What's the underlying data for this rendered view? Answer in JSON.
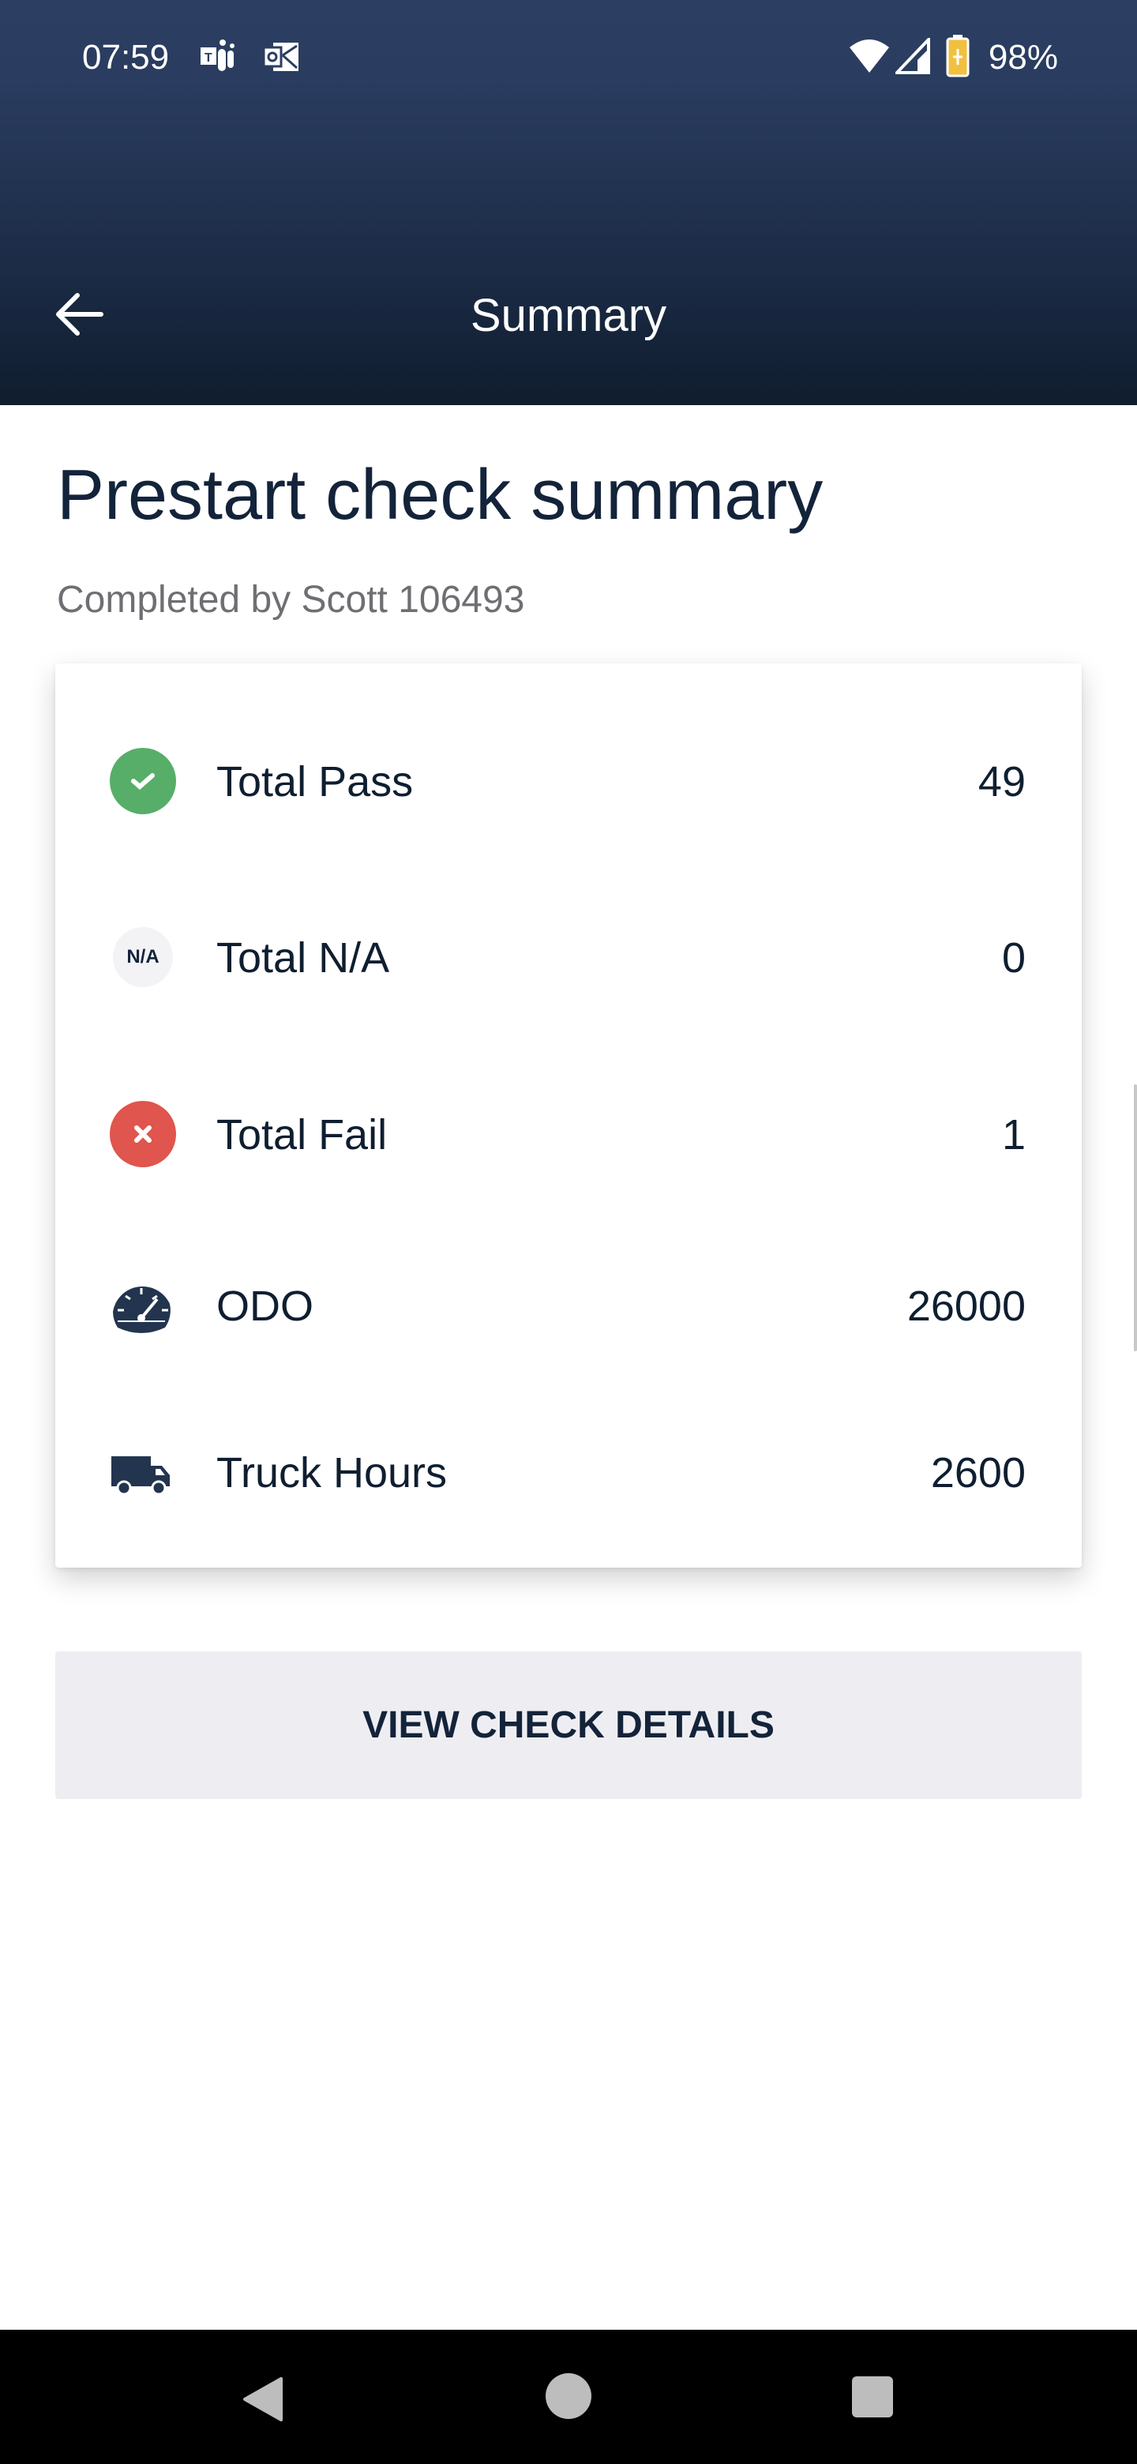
{
  "status_bar": {
    "time": "07:59",
    "battery": "98%",
    "icons": [
      "teams-icon",
      "outlook-icon",
      "wifi-icon",
      "signal-icon",
      "battery-charging-icon"
    ]
  },
  "header": {
    "title": "Summary",
    "back_icon": "arrow-left-icon"
  },
  "page": {
    "title": "Prestart check summary",
    "subtitle": "Completed by Scott 106493"
  },
  "summary": [
    {
      "label": "Total Pass",
      "value": "49",
      "icon": "check-circle-icon",
      "color": "#57ae68"
    },
    {
      "label": "Total N/A",
      "value": "0",
      "icon": "na-icon",
      "icon_text": "N/A",
      "color": "#f3f3f5"
    },
    {
      "label": "Total Fail",
      "value": "1",
      "icon": "x-circle-icon",
      "color": "#e0554d"
    },
    {
      "label": "ODO",
      "value": "26000",
      "icon": "speedometer-icon",
      "color": "#23344f"
    },
    {
      "label": "Truck Hours",
      "value": "2600",
      "icon": "truck-icon",
      "color": "#23344f"
    }
  ],
  "actions": {
    "view_details": "VIEW CHECK DETAILS"
  },
  "nav_bar": {
    "icons": [
      "back-triangle-icon",
      "home-circle-icon",
      "recents-square-icon"
    ]
  }
}
